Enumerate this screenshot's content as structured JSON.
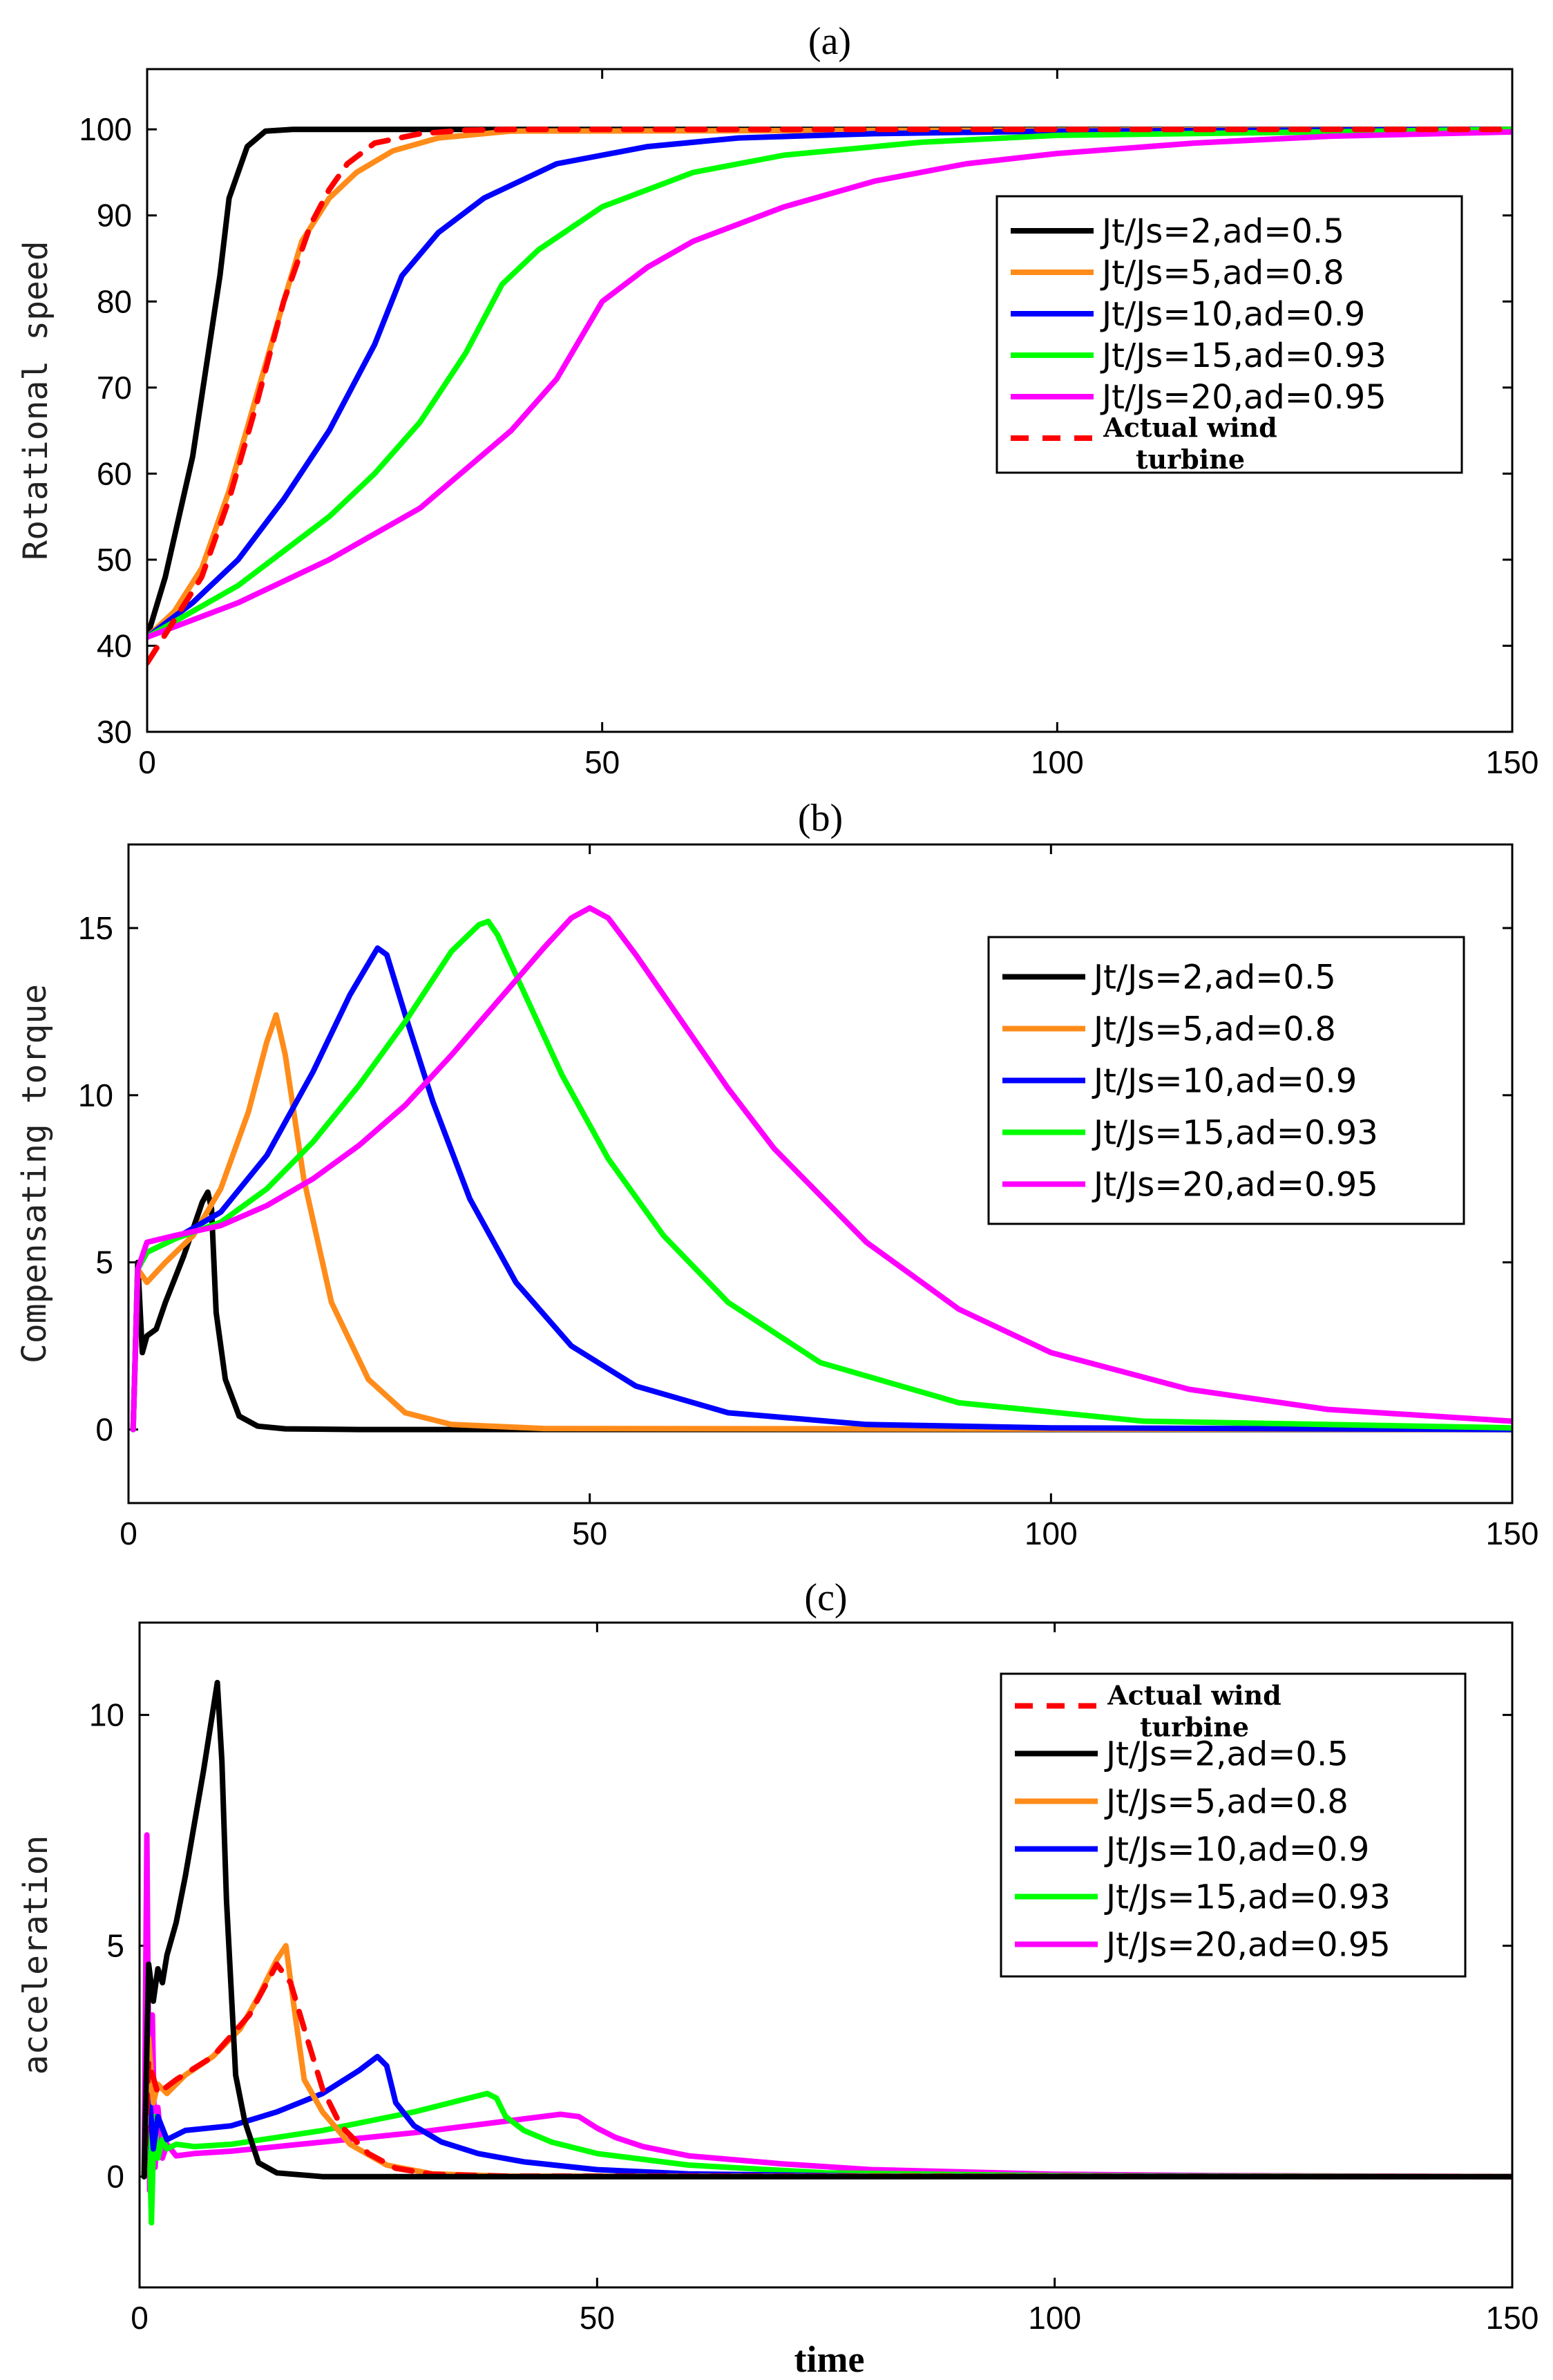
{
  "chart_data": [
    {
      "type": "line",
      "title": "(a)",
      "xlabel": "",
      "ylabel": "Rotational speed",
      "xlim": [
        0,
        150
      ],
      "ylim": [
        30,
        107
      ],
      "xticks": [
        0,
        50,
        100,
        150
      ],
      "yticks": [
        30,
        40,
        50,
        60,
        70,
        80,
        90,
        100
      ],
      "legend_position": "right",
      "series": [
        {
          "name": "Jt/Js=2,ad=0.5",
          "color": "#000000",
          "dashed": false,
          "x": [
            0,
            2,
            5,
            8,
            9,
            10,
            11,
            13,
            16,
            150
          ],
          "y": [
            41,
            48,
            62,
            83,
            92,
            95,
            98,
            99.8,
            100,
            100
          ]
        },
        {
          "name": "Jt/Js=5,ad=0.8",
          "color": "#ff8c1a",
          "dashed": false,
          "x": [
            0,
            3,
            6,
            9,
            12,
            15,
            17,
            20,
            23,
            27,
            32,
            40,
            150
          ],
          "y": [
            41,
            44,
            49,
            58,
            69,
            80,
            87,
            92,
            95,
            97.5,
            99,
            99.8,
            100
          ]
        },
        {
          "name": "Jt/Js=10,ad=0.9",
          "color": "#0000ff",
          "dashed": false,
          "x": [
            0,
            5,
            10,
            15,
            20,
            25,
            28,
            32,
            37,
            45,
            55,
            65,
            80,
            100,
            150
          ],
          "y": [
            41,
            45,
            50,
            57,
            65,
            75,
            83,
            88,
            92,
            96,
            98,
            99,
            99.5,
            99.8,
            100
          ]
        },
        {
          "name": "Jt/Js=15,ad=0.93",
          "color": "#00ff00",
          "dashed": false,
          "x": [
            0,
            5,
            10,
            15,
            20,
            25,
            30,
            35,
            39,
            43,
            50,
            60,
            70,
            85,
            100,
            150
          ],
          "y": [
            41,
            44,
            47,
            51,
            55,
            60,
            66,
            74,
            82,
            86,
            91,
            95,
            97,
            98.5,
            99.3,
            100
          ]
        },
        {
          "name": "Jt/Js=20,ad=0.95",
          "color": "#ff00ff",
          "dashed": false,
          "x": [
            0,
            5,
            10,
            20,
            30,
            40,
            45,
            50,
            55,
            60,
            70,
            80,
            90,
            100,
            115,
            130,
            150
          ],
          "y": [
            41,
            43,
            45,
            50,
            56,
            65,
            71,
            80,
            84,
            87,
            91,
            94,
            96,
            97.2,
            98.4,
            99.2,
            99.7
          ]
        },
        {
          "name": "Actual wind turbine",
          "color": "#ff0000",
          "dashed": true,
          "x": [
            0,
            3,
            6,
            9,
            12,
            15,
            18,
            20,
            22,
            25,
            30,
            35,
            40,
            150
          ],
          "y": [
            38,
            43,
            48,
            57,
            68,
            80,
            89,
            93,
            96,
            98.4,
            99.5,
            99.9,
            100,
            100
          ]
        }
      ],
      "legend": [
        {
          "label": "Jt/Js=2,ad=0.5",
          "color": "#000000",
          "dashed": false
        },
        {
          "label": "Jt/Js=5,ad=0.8",
          "color": "#ff8c1a",
          "dashed": false
        },
        {
          "label": "Jt/Js=10,ad=0.9",
          "color": "#0000ff",
          "dashed": false
        },
        {
          "label": "Jt/Js=15,ad=0.93",
          "color": "#00ff00",
          "dashed": false
        },
        {
          "label": "Jt/Js=20,ad=0.95",
          "color": "#ff00ff",
          "dashed": false
        },
        {
          "label": "Actual wind",
          "label2": "turbine",
          "color": "#ff0000",
          "dashed": true
        }
      ]
    },
    {
      "type": "line",
      "title": "(b)",
      "xlabel": "",
      "ylabel": "Compensating torque",
      "xlim": [
        0,
        150
      ],
      "ylim": [
        -2.2,
        17.5
      ],
      "xticks": [
        0,
        50,
        100,
        150
      ],
      "yticks": [
        0,
        5,
        10,
        15
      ],
      "legend_position": "right",
      "series": [
        {
          "name": "Jt/Js=2,ad=0.5",
          "color": "#000000",
          "dashed": false,
          "x": [
            0.5,
            1,
            1.5,
            2,
            3,
            4,
            6,
            8,
            8.6,
            9,
            9.5,
            10.5,
            12,
            14,
            17,
            25,
            150
          ],
          "y": [
            0,
            5,
            2.3,
            2.8,
            3,
            3.8,
            5.2,
            6.8,
            7.1,
            6.6,
            3.5,
            1.5,
            0.4,
            0.1,
            0.02,
            0,
            0
          ]
        },
        {
          "name": "Jt/Js=5,ad=0.8",
          "color": "#ff8c1a",
          "dashed": false,
          "x": [
            0.5,
            1,
            2,
            4,
            7,
            10,
            13,
            15,
            16,
            17,
            19,
            22,
            26,
            30,
            35,
            45,
            150
          ],
          "y": [
            0,
            4.8,
            4.4,
            5,
            5.8,
            7.2,
            9.5,
            11.6,
            12.4,
            11.2,
            7.5,
            3.8,
            1.5,
            0.5,
            0.15,
            0.03,
            0
          ]
        },
        {
          "name": "Jt/Js=10,ad=0.9",
          "color": "#0000ff",
          "dashed": false,
          "x": [
            0.5,
            1,
            2,
            5,
            10,
            15,
            20,
            24,
            27,
            28,
            30,
            33,
            37,
            42,
            48,
            55,
            65,
            80,
            100,
            150
          ],
          "y": [
            0,
            4.8,
            5.3,
            5.7,
            6.5,
            8.2,
            10.7,
            13,
            14.4,
            14.2,
            12.4,
            9.8,
            6.9,
            4.4,
            2.5,
            1.3,
            0.5,
            0.15,
            0.05,
            0
          ]
        },
        {
          "name": "Jt/Js=15,ad=0.93",
          "color": "#00ff00",
          "dashed": false,
          "x": [
            0.5,
            1,
            2,
            5,
            10,
            15,
            20,
            25,
            30,
            35,
            38,
            39,
            40,
            43,
            47,
            52,
            58,
            65,
            75,
            90,
            110,
            150
          ],
          "y": [
            0,
            4.8,
            5.3,
            5.7,
            6.2,
            7.2,
            8.6,
            10.3,
            12.2,
            14.3,
            15.1,
            15.2,
            14.8,
            13,
            10.6,
            8.1,
            5.8,
            3.8,
            2,
            0.8,
            0.25,
            0.05
          ]
        },
        {
          "name": "Jt/Js=20,ad=0.95",
          "color": "#ff00ff",
          "dashed": false,
          "x": [
            0.5,
            1,
            2,
            5,
            10,
            15,
            20,
            25,
            30,
            35,
            40,
            45,
            48,
            50,
            52,
            55,
            60,
            65,
            70,
            80,
            90,
            100,
            115,
            130,
            150
          ],
          "y": [
            0,
            4.8,
            5.6,
            5.8,
            6.1,
            6.7,
            7.5,
            8.5,
            9.7,
            11.2,
            12.8,
            14.4,
            15.3,
            15.6,
            15.3,
            14.2,
            12.2,
            10.2,
            8.4,
            5.6,
            3.6,
            2.3,
            1.2,
            0.6,
            0.25
          ]
        }
      ],
      "legend": [
        {
          "label": "Jt/Js=2,ad=0.5",
          "color": "#000000",
          "dashed": false
        },
        {
          "label": "Jt/Js=5,ad=0.8",
          "color": "#ff8c1a",
          "dashed": false
        },
        {
          "label": "Jt/Js=10,ad=0.9",
          "color": "#0000ff",
          "dashed": false
        },
        {
          "label": "Jt/Js=15,ad=0.93",
          "color": "#00ff00",
          "dashed": false
        },
        {
          "label": "Jt/Js=20,ad=0.95",
          "color": "#ff00ff",
          "dashed": false
        }
      ]
    },
    {
      "type": "line",
      "title": "(c)",
      "xlabel": "time",
      "ylabel": "acceleration",
      "xlim": [
        0,
        150
      ],
      "ylim": [
        -2.4,
        12
      ],
      "xticks": [
        0,
        50,
        100,
        150
      ],
      "yticks": [
        0,
        5,
        10
      ],
      "legend_position": "right",
      "series": [
        {
          "name": "Jt/Js=20,ad=0.95",
          "color": "#ff00ff",
          "dashed": false,
          "x": [
            0.5,
            0.8,
            1.1,
            1.4,
            1.7,
            2,
            2.5,
            3,
            4,
            6,
            10,
            20,
            30,
            40,
            46,
            48,
            50,
            52,
            55,
            60,
            70,
            80,
            100,
            120,
            150
          ],
          "y": [
            0,
            7.4,
            -0.3,
            3.5,
            0.2,
            1.5,
            0.4,
            0.7,
            0.45,
            0.5,
            0.55,
            0.75,
            0.95,
            1.2,
            1.35,
            1.3,
            1.05,
            0.85,
            0.65,
            0.45,
            0.28,
            0.15,
            0.05,
            0.02,
            0
          ]
        },
        {
          "name": "Jt/Js=15,ad=0.93",
          "color": "#00ff00",
          "dashed": false,
          "x": [
            0.5,
            1,
            1.3,
            1.6,
            2,
            2.5,
            3,
            4,
            6,
            10,
            15,
            20,
            25,
            30,
            35,
            38,
            39,
            40,
            42,
            45,
            50,
            60,
            75,
            100,
            150
          ],
          "y": [
            0,
            1.5,
            -1,
            1.3,
            0.4,
            0.8,
            0.6,
            0.7,
            0.65,
            0.7,
            0.85,
            1.0,
            1.2,
            1.4,
            1.65,
            1.8,
            1.7,
            1.3,
            1.0,
            0.75,
            0.5,
            0.25,
            0.08,
            0.02,
            0
          ]
        },
        {
          "name": "Jt/Js=10,ad=0.9",
          "color": "#0000ff",
          "dashed": false,
          "x": [
            0.5,
            1,
            1.5,
            2,
            3,
            5,
            10,
            15,
            20,
            24,
            26,
            27,
            28,
            30,
            33,
            37,
            42,
            50,
            60,
            80,
            150
          ],
          "y": [
            0,
            2,
            0.6,
            1.3,
            0.8,
            1.0,
            1.1,
            1.4,
            1.8,
            2.3,
            2.6,
            2.4,
            1.6,
            1.1,
            0.75,
            0.5,
            0.32,
            0.15,
            0.06,
            0.01,
            0
          ]
        },
        {
          "name": "Jt/Js=5,ad=0.8",
          "color": "#ff8c1a",
          "dashed": false,
          "x": [
            0.5,
            1,
            1.5,
            2,
            3,
            5,
            8,
            11,
            13,
            15,
            16,
            17,
            18,
            20,
            23,
            27,
            32,
            40,
            150
          ],
          "y": [
            0,
            3,
            1.6,
            2,
            1.8,
            2.2,
            2.6,
            3.2,
            3.9,
            4.7,
            5,
            3.5,
            2.1,
            1.4,
            0.7,
            0.25,
            0.06,
            0.01,
            0
          ]
        },
        {
          "name": "Actual wind turbine",
          "color": "#ff0000",
          "dashed": true,
          "x": [
            0.5,
            1,
            2,
            4,
            8,
            12,
            15,
            16.5,
            18,
            20,
            22,
            25,
            28,
            32,
            40,
            150
          ],
          "y": [
            0,
            2.5,
            1.8,
            2.1,
            2.6,
            3.5,
            4.6,
            4.2,
            3.2,
            1.9,
            1.1,
            0.5,
            0.18,
            0.05,
            0.01,
            0
          ]
        },
        {
          "name": "Jt/Js=2,ad=0.5",
          "color": "#000000",
          "dashed": false,
          "x": [
            0.5,
            1,
            1.5,
            2,
            2.5,
            3,
            4,
            5,
            7,
            8.5,
            9,
            9.5,
            10.5,
            11.5,
            13,
            15,
            20,
            150
          ],
          "y": [
            0,
            4.6,
            3.8,
            4.5,
            4.2,
            4.8,
            5.5,
            6.5,
            8.8,
            10.7,
            9,
            6,
            2.2,
            1.2,
            0.3,
            0.08,
            0,
            0
          ]
        }
      ],
      "legend": [
        {
          "label": "Actual wind",
          "label2": "turbine",
          "color": "#ff0000",
          "dashed": true
        },
        {
          "label": "Jt/Js=2,ad=0.5",
          "color": "#000000",
          "dashed": false
        },
        {
          "label": "Jt/Js=5,ad=0.8",
          "color": "#ff8c1a",
          "dashed": false
        },
        {
          "label": "Jt/Js=10,ad=0.9",
          "color": "#0000ff",
          "dashed": false
        },
        {
          "label": "Jt/Js=15,ad=0.93",
          "color": "#00ff00",
          "dashed": false
        },
        {
          "label": "Jt/Js=20,ad=0.95",
          "color": "#ff00ff",
          "dashed": false
        }
      ]
    }
  ]
}
